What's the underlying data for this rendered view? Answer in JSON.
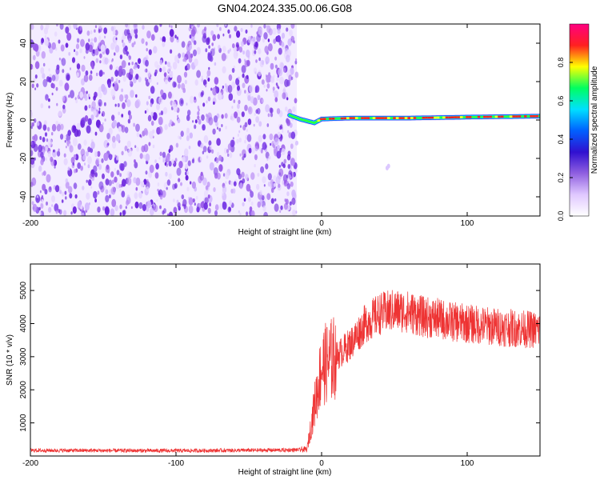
{
  "title": "GN04.2024.335.00.06.G08",
  "chart_data": [
    {
      "type": "heatmap",
      "xlabel": "Height of straight line (km)",
      "ylabel": "Frequency (Hz)",
      "xlim": [
        -200,
        150
      ],
      "ylim": [
        -50,
        50
      ],
      "xticks": [
        -200,
        -100,
        0,
        100
      ],
      "yticks": [
        -40,
        -20,
        0,
        20,
        40
      ],
      "colorbar": {
        "label": "Normalized spectral amplitude",
        "ticks": [
          0.0,
          0.2,
          0.4,
          0.6,
          0.8
        ],
        "range": [
          0,
          1
        ],
        "colors": [
          "#ffffff",
          "#e0c8ff",
          "#9060e0",
          "#3010d0",
          "#0060ff",
          "#00e0ff",
          "#00ff60",
          "#ffff00",
          "#ff2020",
          "#ff0080"
        ]
      },
      "features": {
        "noise_region_x": [
          -200,
          -17
        ],
        "noise_color": "#7a3ce6",
        "signal_start_x": -22,
        "signal_frequency_hz": [
          [
            -22,
            2.5
          ],
          [
            -15,
            0.5
          ],
          [
            -5,
            -1.5
          ],
          [
            0,
            0.5
          ],
          [
            20,
            1
          ],
          [
            60,
            1
          ],
          [
            100,
            1.5
          ],
          [
            150,
            2
          ]
        ],
        "signal_peak_color": "#ff2020"
      }
    },
    {
      "type": "line",
      "xlabel": "Height of straight line (km)",
      "ylabel": "SNR (10 * v/v)",
      "xlim": [
        -200,
        150
      ],
      "ylim": [
        0,
        5800
      ],
      "xticks": [
        -200,
        -100,
        0,
        100
      ],
      "yticks": [
        1000,
        2000,
        3000,
        4000,
        5000
      ],
      "color": "#ee3333",
      "trend": {
        "x": [
          -200,
          -100,
          -20,
          -10,
          -5,
          0,
          10,
          20,
          30,
          40,
          50,
          60,
          70,
          80,
          90,
          100,
          120,
          150
        ],
        "y": [
          170,
          160,
          180,
          200,
          1500,
          2700,
          3000,
          3400,
          4000,
          4300,
          4400,
          4350,
          4200,
          4150,
          4050,
          4000,
          3900,
          3800
        ]
      }
    }
  ]
}
